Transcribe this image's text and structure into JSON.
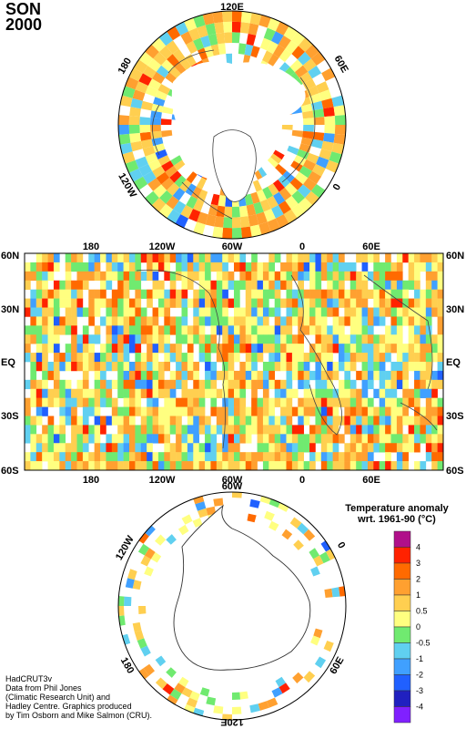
{
  "title": {
    "season": "SON",
    "year": "2000"
  },
  "north_polar": {
    "labels": {
      "top": "120E",
      "upper_left": "180",
      "upper_right": "60E",
      "lower_left": "120W",
      "lower_right": "0"
    }
  },
  "equatorial": {
    "top_labels": [
      "180",
      "120W",
      "60W",
      "0",
      "60E"
    ],
    "bottom_labels": [
      "180",
      "120W",
      "60W",
      "0",
      "60E"
    ],
    "left_labels": [
      "60N",
      "30N",
      "EQ",
      "30S",
      "60S"
    ],
    "right_labels": [
      "60N",
      "30N",
      "EQ",
      "30S",
      "60S"
    ]
  },
  "south_polar": {
    "labels": {
      "top": "60W",
      "upper_left": "120W",
      "upper_right": "0",
      "lower_left": "180",
      "lower_right": "60E",
      "bottom": "120E"
    }
  },
  "legend": {
    "title_line1": "Temperature anomaly",
    "title_line2": "wrt. 1961-90  (°C)",
    "ticks": [
      "4",
      "3",
      "2",
      "1",
      "0.5",
      "0",
      "-0.5",
      "-1",
      "-2",
      "-3",
      "-4"
    ],
    "colors": [
      "#b0108a",
      "#ff2200",
      "#ff6a00",
      "#ffa030",
      "#ffcf50",
      "#ffff80",
      "#70ea70",
      "#60d0f0",
      "#40a0ff",
      "#2060ff",
      "#2020c0",
      "#8020ff"
    ]
  },
  "credit": [
    "HadCRUT3v",
    "Data from Phil Jones",
    "(Climatic Research Unit) and",
    "Hadley Centre.  Graphics produced",
    "by Tim Osborn and Mike Salmon (CRU)."
  ]
}
